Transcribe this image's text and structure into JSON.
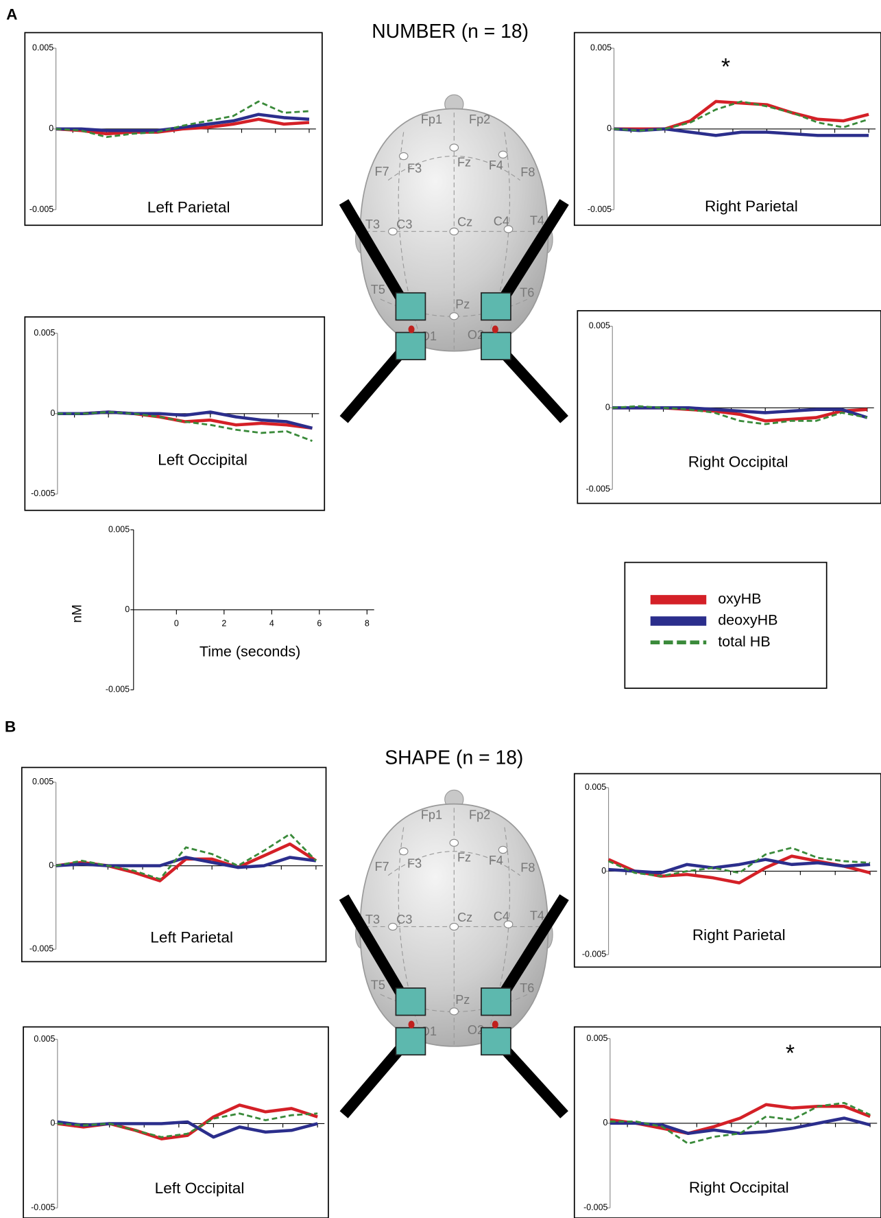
{
  "figure": [
    {
      "label": "A",
      "title": "NUMBER (n = 18)"
    },
    {
      "label": "B",
      "title": "SHAPE (n = 18)"
    }
  ],
  "head": {
    "electrodes": [
      "Fp1",
      "Fp2",
      "F7",
      "F3",
      "Fz",
      "F4",
      "F8",
      "T3",
      "C3",
      "Cz",
      "C4",
      "T4",
      "T5",
      "Pz",
      "T6",
      "O1",
      "O2"
    ]
  },
  "legend": {
    "entries": [
      {
        "name": "oxyHB",
        "color": "#d42027",
        "dashed": false
      },
      {
        "name": "deoxyHB",
        "color": "#2b2e8c",
        "dashed": false
      },
      {
        "name": "total HB",
        "color": "#3a8a3a",
        "dashed": true
      }
    ]
  },
  "chart_data": [
    {
      "type": "line",
      "title": "Left Parietal",
      "x": [
        -1.5,
        -0.75,
        0,
        0.75,
        1.5,
        2.25,
        3,
        3.75,
        4.5,
        5.25,
        6
      ],
      "xlim": [
        -1.5,
        6.2
      ],
      "xticks": [
        -1,
        0,
        1,
        2,
        3,
        4,
        5,
        6
      ],
      "ylim": [
        -0.005,
        0.005
      ],
      "yticks": [
        -0.005,
        0,
        0.005
      ],
      "series": [
        {
          "color": "#d42027",
          "dashed": false,
          "values": [
            0,
            -0.0001,
            -0.0003,
            -0.0002,
            -0.0002,
            0,
            0.0001,
            0.0003,
            0.0006,
            0.0003,
            0.0004
          ]
        },
        {
          "color": "#2b2e8c",
          "dashed": false,
          "values": [
            0,
            0,
            -0.0001,
            -0.0001,
            -0.0001,
            0.0001,
            0.0003,
            0.0005,
            0.0009,
            0.0007,
            0.0006
          ]
        },
        {
          "color": "#3a8a3a",
          "dashed": true,
          "values": [
            0,
            -0.0001,
            -0.0005,
            -0.0003,
            -0.0002,
            0.0002,
            0.0005,
            0.0008,
            0.0017,
            0.001,
            0.0011
          ]
        }
      ]
    },
    {
      "type": "line",
      "title": "Right Parietal",
      "annotation": "*",
      "x": [
        -1.5,
        -0.75,
        0,
        0.75,
        1.5,
        2.25,
        3,
        3.75,
        4.5,
        5.25,
        6
      ],
      "xlim": [
        -1.5,
        6.2
      ],
      "xticks": [
        -1,
        0,
        1,
        2,
        3,
        4,
        5,
        6
      ],
      "ylim": [
        -0.005,
        0.005
      ],
      "yticks": [
        -0.005,
        0,
        0.005
      ],
      "series": [
        {
          "color": "#d42027",
          "dashed": false,
          "values": [
            0,
            0,
            0,
            0.0005,
            0.0017,
            0.0016,
            0.0015,
            0.001,
            0.0006,
            0.0005,
            0.0009
          ]
        },
        {
          "color": "#2b2e8c",
          "dashed": false,
          "values": [
            0,
            -0.0001,
            0,
            -0.0002,
            -0.0004,
            -0.0002,
            -0.0002,
            -0.0003,
            -0.0004,
            -0.0004,
            -0.0004
          ]
        },
        {
          "color": "#3a8a3a",
          "dashed": true,
          "values": [
            0,
            -0.0001,
            0,
            0.0004,
            0.0012,
            0.0017,
            0.0014,
            0.001,
            0.0004,
            0.0001,
            0.0006
          ]
        }
      ]
    },
    {
      "type": "line",
      "title": "Left Occipital",
      "x": [
        -1.5,
        -0.75,
        0,
        0.75,
        1.5,
        2.25,
        3,
        3.75,
        4.5,
        5.25,
        6
      ],
      "xlim": [
        -1.5,
        6.2
      ],
      "xticks": [
        -1,
        0,
        1,
        2,
        3,
        4,
        5,
        6
      ],
      "ylim": [
        -0.005,
        0.005
      ],
      "yticks": [
        -0.005,
        0,
        0.005
      ],
      "series": [
        {
          "color": "#d42027",
          "dashed": false,
          "values": [
            0,
            0,
            0.0001,
            0,
            -0.0002,
            -0.0005,
            -0.0004,
            -0.0007,
            -0.0006,
            -0.0007,
            -0.0009
          ]
        },
        {
          "color": "#2b2e8c",
          "dashed": false,
          "values": [
            0,
            0,
            0.0001,
            0,
            0,
            -0.0001,
            0.0001,
            -0.0002,
            -0.0004,
            -0.0005,
            -0.0009
          ]
        },
        {
          "color": "#3a8a3a",
          "dashed": true,
          "values": [
            0,
            0,
            0.0001,
            0,
            -0.0002,
            -0.0005,
            -0.0007,
            -0.001,
            -0.0012,
            -0.0011,
            -0.0017
          ]
        }
      ]
    },
    {
      "type": "line",
      "title": "Right Occipital",
      "x": [
        -1.5,
        -0.75,
        0,
        0.75,
        1.5,
        2.25,
        3,
        3.75,
        4.5,
        5.25,
        6
      ],
      "xlim": [
        -1.5,
        6.2
      ],
      "xticks": [
        -1,
        0,
        1,
        2,
        3,
        4,
        5,
        6
      ],
      "ylim": [
        -0.005,
        0.005
      ],
      "yticks": [
        -0.005,
        0,
        0.005
      ],
      "series": [
        {
          "color": "#d42027",
          "dashed": false,
          "values": [
            0,
            0,
            0,
            -0.0001,
            -0.0002,
            -0.0004,
            -0.0008,
            -0.0007,
            -0.0006,
            -0.0002,
            -0.0001
          ]
        },
        {
          "color": "#2b2e8c",
          "dashed": false,
          "values": [
            0,
            0,
            0,
            0,
            -0.0001,
            -0.0002,
            -0.0003,
            -0.0002,
            -0.0001,
            -0.0001,
            -0.0006
          ]
        },
        {
          "color": "#3a8a3a",
          "dashed": true,
          "values": [
            0,
            0.0001,
            0,
            -0.0001,
            -0.0003,
            -0.0008,
            -0.001,
            -0.0008,
            -0.0008,
            -0.0003,
            -0.0006
          ]
        }
      ]
    },
    {
      "type": "line",
      "title": "Left Parietal",
      "x": [
        -1.5,
        -0.75,
        0,
        0.75,
        1.5,
        2.25,
        3,
        3.75,
        4.5,
        5.25,
        6
      ],
      "xlim": [
        -1.5,
        6.2
      ],
      "xticks": [
        -1,
        0,
        1,
        2,
        3,
        4,
        5,
        6
      ],
      "ylim": [
        -0.005,
        0.005
      ],
      "yticks": [
        -0.005,
        0,
        0.005
      ],
      "series": [
        {
          "color": "#d42027",
          "dashed": false,
          "values": [
            0,
            0.0002,
            0,
            -0.0004,
            -0.0009,
            0.0004,
            0.0004,
            -0.0001,
            0.0006,
            0.0013,
            0.0003
          ]
        },
        {
          "color": "#2b2e8c",
          "dashed": false,
          "values": [
            0,
            0.0001,
            0,
            0,
            0,
            0.0005,
            0.0002,
            -0.0001,
            0,
            0.0005,
            0.0003
          ]
        },
        {
          "color": "#3a8a3a",
          "dashed": true,
          "values": [
            0,
            0.0003,
            0,
            -0.0003,
            -0.0008,
            0.0011,
            0.0007,
            0,
            0.0009,
            0.0019,
            0.0003
          ]
        }
      ]
    },
    {
      "type": "line",
      "title": "Right Parietal",
      "x": [
        -1.5,
        -0.75,
        0,
        0.75,
        1.5,
        2.25,
        3,
        3.75,
        4.5,
        5.25,
        6
      ],
      "xlim": [
        -1.5,
        6.2
      ],
      "xticks": [
        -1,
        0,
        1,
        2,
        3,
        4,
        5,
        6
      ],
      "ylim": [
        -0.005,
        0.005
      ],
      "yticks": [
        -0.005,
        0,
        0.005
      ],
      "series": [
        {
          "color": "#d42027",
          "dashed": false,
          "values": [
            0.0007,
            0,
            -0.0003,
            -0.0002,
            -0.0004,
            -0.0007,
            0.0002,
            0.0009,
            0.0006,
            0.0003,
            -0.0001
          ]
        },
        {
          "color": "#2b2e8c",
          "dashed": false,
          "values": [
            0.0001,
            0,
            -0.0001,
            0.0004,
            0.0002,
            0.0004,
            0.0007,
            0.0004,
            0.0005,
            0.0003,
            0.0004
          ]
        },
        {
          "color": "#3a8a3a",
          "dashed": true,
          "values": [
            0.0006,
            -0.0001,
            -0.0003,
            0,
            0.0002,
            -0.0001,
            0.001,
            0.0014,
            0.0008,
            0.0006,
            0.0005
          ]
        }
      ]
    },
    {
      "type": "line",
      "title": "Left Occipital",
      "x": [
        -1.5,
        -0.75,
        0,
        0.75,
        1.5,
        2.25,
        3,
        3.75,
        4.5,
        5.25,
        6
      ],
      "xlim": [
        -1.5,
        6.2
      ],
      "xticks": [
        -1,
        0,
        1,
        2,
        3,
        4,
        5,
        6
      ],
      "ylim": [
        -0.005,
        0.005
      ],
      "yticks": [
        -0.005,
        0,
        0.005
      ],
      "series": [
        {
          "color": "#d42027",
          "dashed": false,
          "values": [
            0,
            -0.0002,
            0,
            -0.0004,
            -0.0009,
            -0.0007,
            0.0004,
            0.0011,
            0.0007,
            0.0009,
            0.0004
          ]
        },
        {
          "color": "#2b2e8c",
          "dashed": false,
          "values": [
            0.0001,
            -0.0001,
            0,
            0,
            0,
            0.0001,
            -0.0008,
            -0.0002,
            -0.0005,
            -0.0004,
            0
          ]
        },
        {
          "color": "#3a8a3a",
          "dashed": true,
          "values": [
            0,
            -0.0001,
            0,
            -0.0004,
            -0.0008,
            -0.0006,
            0.0003,
            0.0006,
            0.0002,
            0.0005,
            0.0006
          ]
        }
      ]
    },
    {
      "type": "line",
      "title": "Right Occipital",
      "annotation": "*",
      "x": [
        -1.5,
        -0.75,
        0,
        0.75,
        1.5,
        2.25,
        3,
        3.75,
        4.5,
        5.25,
        6
      ],
      "xlim": [
        -1.5,
        6.2
      ],
      "xticks": [
        -1,
        0,
        1,
        2,
        3,
        4,
        5,
        6
      ],
      "ylim": [
        -0.005,
        0.005
      ],
      "yticks": [
        -0.005,
        0,
        0.005
      ],
      "series": [
        {
          "color": "#d42027",
          "dashed": false,
          "values": [
            0.0002,
            0,
            -0.0003,
            -0.0006,
            -0.0002,
            0.0003,
            0.0011,
            0.0009,
            0.001,
            0.001,
            0.0004
          ]
        },
        {
          "color": "#2b2e8c",
          "dashed": false,
          "values": [
            0,
            0,
            -0.0001,
            -0.0006,
            -0.0004,
            -0.0006,
            -0.0005,
            -0.0003,
            0,
            0.0003,
            -0.0001
          ]
        },
        {
          "color": "#3a8a3a",
          "dashed": true,
          "values": [
            0.0001,
            0.0001,
            -0.0002,
            -0.0012,
            -0.0008,
            -0.0006,
            0.0004,
            0.0002,
            0.001,
            0.0012,
            0.0005
          ]
        }
      ]
    },
    {
      "type": "axes",
      "x_label": "Time (seconds)",
      "y_label": "nM",
      "xlim": [
        -1.8,
        8.3
      ],
      "xticks": [
        0,
        2,
        4,
        6,
        8
      ],
      "ylim": [
        -0.005,
        0.005
      ],
      "yticks": [
        -0.005,
        0,
        0.005
      ]
    }
  ]
}
